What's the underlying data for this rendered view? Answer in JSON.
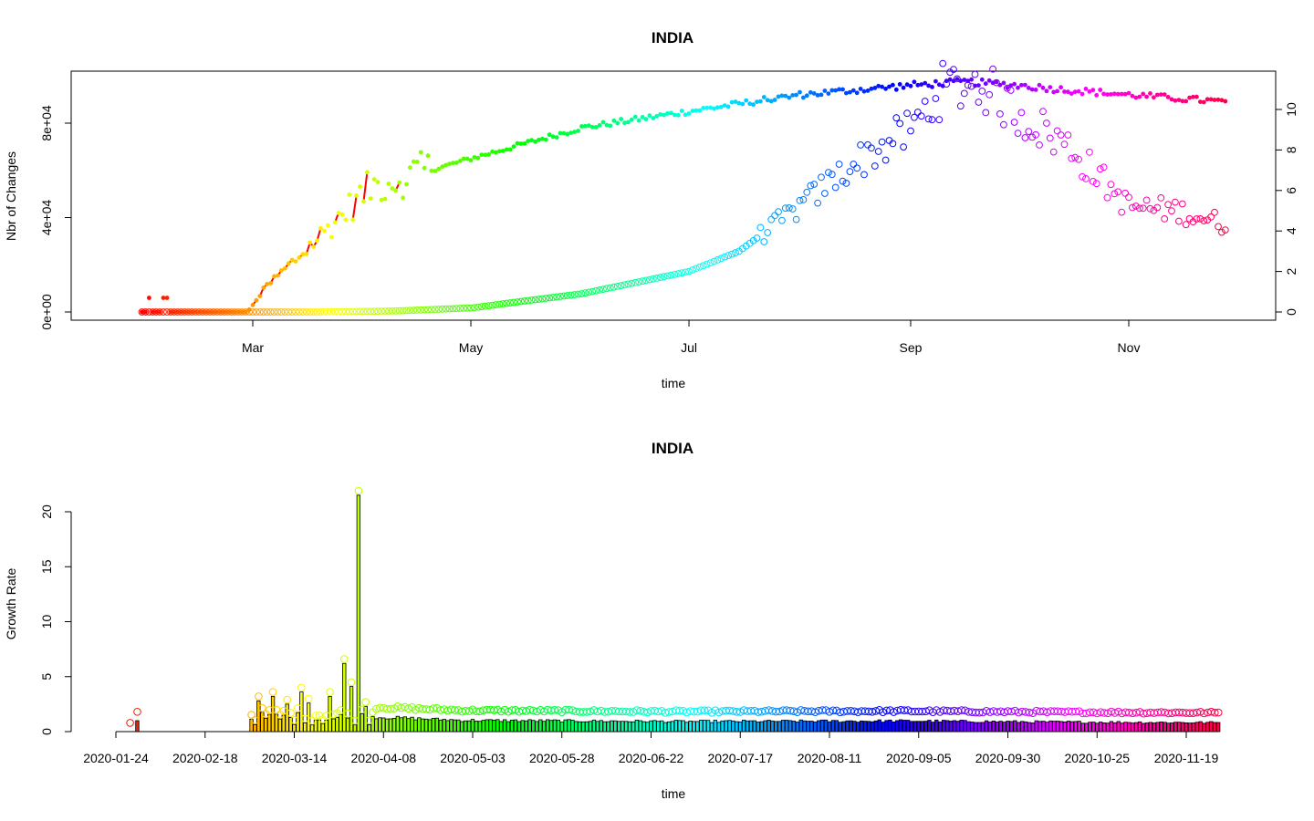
{
  "chart_data": [
    {
      "type": "scatter",
      "title": "INDIA",
      "xlabel": "time",
      "ylabel": "Nbr of Changes",
      "x_range": [
        "2020-01-22",
        "2020-11-30"
      ],
      "x_ticks": [
        "Mar",
        "May",
        "Jul",
        "Sep",
        "Nov"
      ],
      "y_ticks": [
        "0e+00",
        "4e+04",
        "8e+04"
      ],
      "ylim": [
        0,
        100000
      ],
      "y2_ticks": [
        "0",
        "2",
        "4",
        "6",
        "8",
        "10"
      ],
      "y2lim": [
        0,
        12
      ],
      "start_date": "2020-01-30",
      "end_date": "2020-11-28",
      "series": [
        {
          "name": "",
          "marker": "filled-dot",
          "axis": "left",
          "keypoints": [
            {
              "x": "2020-01-30",
              "y": 0
            },
            {
              "x": "2020-02-29",
              "y": 1000
            },
            {
              "x": "2020-03-05",
              "y": 11000
            },
            {
              "x": "2020-03-15",
              "y": 25000
            },
            {
              "x": "2020-03-25",
              "y": 40000
            },
            {
              "x": "2020-04-03",
              "y": 53000
            },
            {
              "x": "2020-04-15",
              "y": 58000
            },
            {
              "x": "2020-05-01",
              "y": 65000
            },
            {
              "x": "2020-06-01",
              "y": 78000
            },
            {
              "x": "2020-07-01",
              "y": 85000
            },
            {
              "x": "2020-08-01",
              "y": 92000
            },
            {
              "x": "2020-09-01",
              "y": 96000
            },
            {
              "x": "2020-09-16",
              "y": 97500
            },
            {
              "x": "2020-10-01",
              "y": 96000
            },
            {
              "x": "2020-10-15",
              "y": 94000
            },
            {
              "x": "2020-11-01",
              "y": 92000
            },
            {
              "x": "2020-11-28",
              "y": 89000
            }
          ]
        },
        {
          "name": "",
          "marker": "open-circle",
          "axis": "right",
          "keypoints": [
            {
              "x": "2020-01-30",
              "y": 0
            },
            {
              "x": "2020-03-20",
              "y": 0
            },
            {
              "x": "2020-04-10",
              "y": 0.05
            },
            {
              "x": "2020-05-01",
              "y": 0.2
            },
            {
              "x": "2020-06-01",
              "y": 0.9
            },
            {
              "x": "2020-07-01",
              "y": 2.0
            },
            {
              "x": "2020-07-15",
              "y": 3.0
            },
            {
              "x": "2020-08-01",
              "y": 5.2
            },
            {
              "x": "2020-08-15",
              "y": 7.2
            },
            {
              "x": "2020-09-01",
              "y": 9.0
            },
            {
              "x": "2020-09-10",
              "y": 11.0
            },
            {
              "x": "2020-09-20",
              "y": 11.3
            },
            {
              "x": "2020-10-01",
              "y": 9.8
            },
            {
              "x": "2020-10-15",
              "y": 8.2
            },
            {
              "x": "2020-11-01",
              "y": 5.2
            },
            {
              "x": "2020-11-15",
              "y": 5.0
            },
            {
              "x": "2020-11-28",
              "y": 4.3
            }
          ]
        }
      ]
    },
    {
      "type": "bar",
      "title": "INDIA",
      "xlabel": "time",
      "ylabel": "Growth Rate",
      "x_ticks": [
        "2020-01-24",
        "2020-02-18",
        "2020-03-14",
        "2020-04-08",
        "2020-05-03",
        "2020-05-28",
        "2020-06-22",
        "2020-07-17",
        "2020-08-11",
        "2020-09-05",
        "2020-09-30",
        "2020-10-25",
        "2020-11-19"
      ],
      "y_ticks": [
        "0",
        "5",
        "10",
        "15",
        "20"
      ],
      "ylim": [
        0,
        21.5
      ],
      "start_date": "2020-01-24",
      "end_date": "2020-11-28",
      "spikes": [
        {
          "x": "2020-03-04",
          "y": 2.8
        },
        {
          "x": "2020-03-08",
          "y": 3.2
        },
        {
          "x": "2020-03-12",
          "y": 2.5
        },
        {
          "x": "2020-03-16",
          "y": 3.6
        },
        {
          "x": "2020-03-18",
          "y": 2.6
        },
        {
          "x": "2020-03-24",
          "y": 3.2
        },
        {
          "x": "2020-03-28",
          "y": 6.2
        },
        {
          "x": "2020-03-30",
          "y": 4.1
        },
        {
          "x": "2020-04-01",
          "y": 21.5
        },
        {
          "x": "2020-04-03",
          "y": 2.3
        }
      ],
      "baseline_keypoints": [
        {
          "x": "2020-04-05",
          "y": 1.3
        },
        {
          "x": "2020-05-01",
          "y": 1.0
        },
        {
          "x": "2020-07-01",
          "y": 0.9
        },
        {
          "x": "2020-09-01",
          "y": 0.95
        },
        {
          "x": "2020-10-15",
          "y": 0.85
        },
        {
          "x": "2020-11-28",
          "y": 0.8
        }
      ]
    }
  ]
}
